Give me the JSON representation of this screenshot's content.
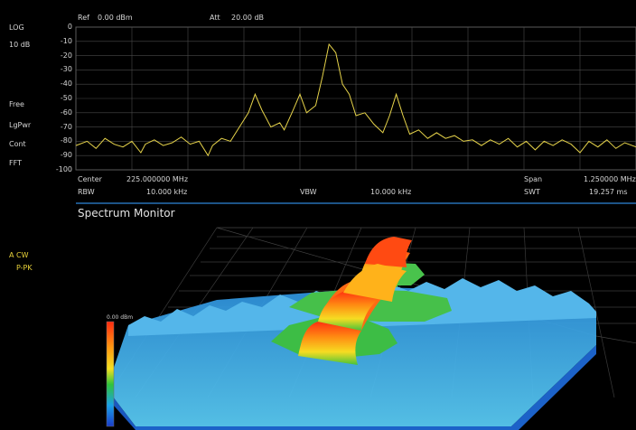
{
  "header": {
    "ref_label": "Ref",
    "ref_value": "0.00 dBm",
    "att_label": "Att",
    "att_value": "20.00 dB"
  },
  "side": {
    "scale_type": "LOG",
    "scale_div": "10 dB",
    "trigger": "Free",
    "detector": "LgPwr",
    "sweep": "Cont",
    "mode": "FFT"
  },
  "axis": {
    "y_ticks": [
      "0",
      "-10",
      "-20",
      "-30",
      "-40",
      "-50",
      "-60",
      "-70",
      "-80",
      "-90",
      "-100"
    ]
  },
  "footer": {
    "center_label": "Center",
    "center_value": "225.000000 MHz",
    "span_label": "Span",
    "span_value": "1.250000 MHz",
    "rbw_label": "RBW",
    "rbw_value": "10.000 kHz",
    "vbw_label": "VBW",
    "vbw_value": "10.000 kHz",
    "swt_label": "SWT",
    "swt_value": "19.257 ms"
  },
  "monitor": {
    "title": "Spectrum Monitor",
    "trace_label": "A CW",
    "detector_label": "P-PK",
    "colorbar_label": "0.00 dBm"
  },
  "colors": {
    "trace": "#e6d34a",
    "grid": "#4a4a4a",
    "divider": "#2f86d9"
  },
  "chart_data": {
    "type": "line",
    "title": "",
    "xlabel": "",
    "ylabel": "",
    "ylim": [
      -100,
      0
    ],
    "xlim": [
      224.375,
      225.625
    ],
    "grid": true,
    "series": [
      {
        "values": [
          [
            224.375,
            -83
          ],
          [
            224.4,
            -80
          ],
          [
            224.42,
            -85
          ],
          [
            224.44,
            -78
          ],
          [
            224.46,
            -82
          ],
          [
            224.48,
            -84
          ],
          [
            224.5,
            -80
          ],
          [
            224.52,
            -88
          ],
          [
            224.53,
            -82
          ],
          [
            224.55,
            -79
          ],
          [
            224.57,
            -83
          ],
          [
            224.59,
            -81
          ],
          [
            224.61,
            -77
          ],
          [
            224.63,
            -82
          ],
          [
            224.65,
            -80
          ],
          [
            224.67,
            -90
          ],
          [
            224.68,
            -83
          ],
          [
            224.7,
            -78
          ],
          [
            224.72,
            -80
          ],
          [
            224.74,
            -70
          ],
          [
            224.76,
            -60
          ],
          [
            224.775,
            -47
          ],
          [
            224.79,
            -58
          ],
          [
            224.81,
            -70
          ],
          [
            224.83,
            -67
          ],
          [
            224.84,
            -72
          ],
          [
            224.86,
            -58
          ],
          [
            224.875,
            -47
          ],
          [
            224.89,
            -60
          ],
          [
            224.91,
            -55
          ],
          [
            224.925,
            -35
          ],
          [
            224.94,
            -12
          ],
          [
            224.955,
            -18
          ],
          [
            224.97,
            -40
          ],
          [
            224.985,
            -47
          ],
          [
            225.0,
            -62
          ],
          [
            225.02,
            -60
          ],
          [
            225.04,
            -68
          ],
          [
            225.06,
            -74
          ],
          [
            225.075,
            -62
          ],
          [
            225.09,
            -47
          ],
          [
            225.105,
            -62
          ],
          [
            225.12,
            -75
          ],
          [
            225.14,
            -72
          ],
          [
            225.16,
            -78
          ],
          [
            225.18,
            -74
          ],
          [
            225.2,
            -78
          ],
          [
            225.22,
            -76
          ],
          [
            225.24,
            -80
          ],
          [
            225.26,
            -79
          ],
          [
            225.28,
            -83
          ],
          [
            225.3,
            -79
          ],
          [
            225.32,
            -82
          ],
          [
            225.34,
            -78
          ],
          [
            225.36,
            -84
          ],
          [
            225.38,
            -80
          ],
          [
            225.4,
            -86
          ],
          [
            225.42,
            -80
          ],
          [
            225.44,
            -83
          ],
          [
            225.46,
            -79
          ],
          [
            225.48,
            -82
          ],
          [
            225.5,
            -88
          ],
          [
            225.52,
            -80
          ],
          [
            225.54,
            -84
          ],
          [
            225.56,
            -79
          ],
          [
            225.58,
            -85
          ],
          [
            225.6,
            -81
          ],
          [
            225.625,
            -84
          ]
        ]
      }
    ]
  }
}
